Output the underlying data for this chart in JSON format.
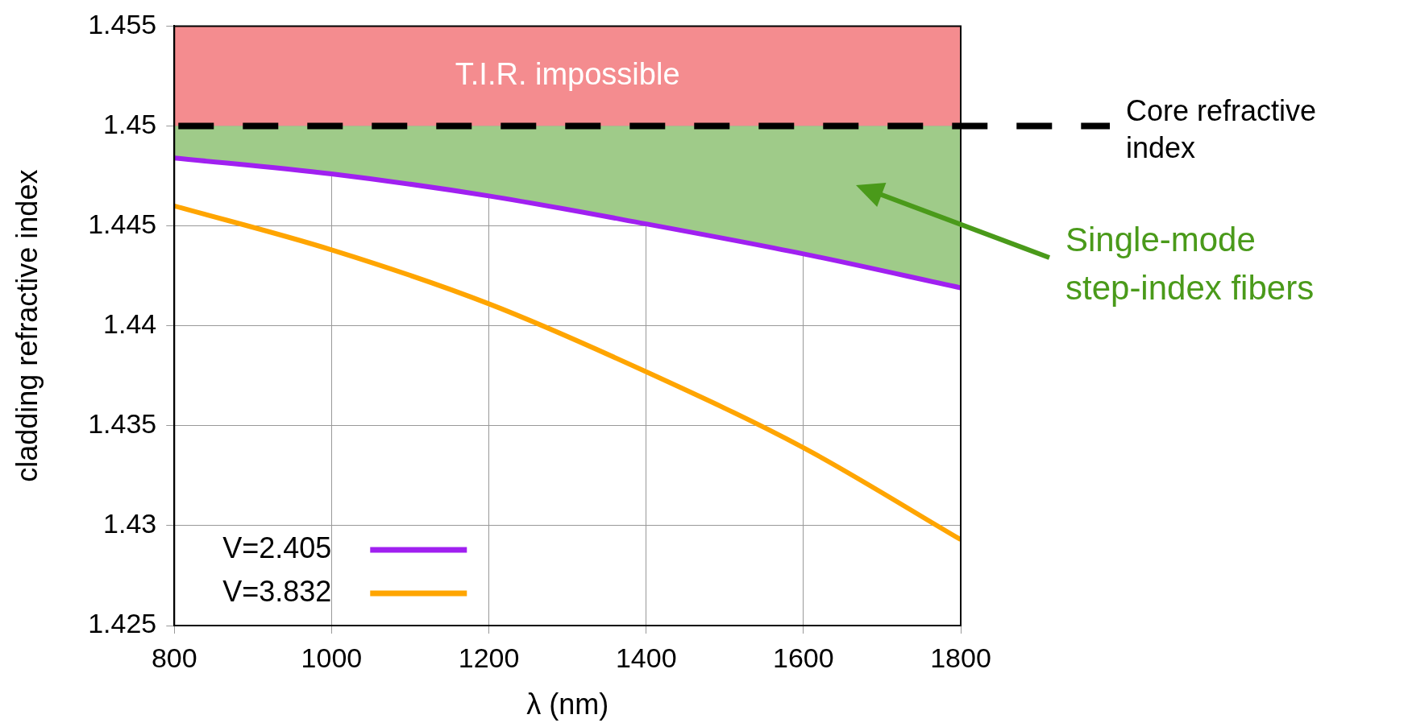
{
  "chart_data": {
    "type": "line",
    "xlabel": "λ (nm)",
    "ylabel": "cladding refractive index",
    "x": [
      800,
      1000,
      1200,
      1400,
      1600,
      1800
    ],
    "series": [
      {
        "type": "area",
        "color": "#9fcb89",
        "values": [
          1.45,
          1.45,
          1.45,
          1.45,
          1.45,
          1.45
        ]
      },
      {
        "name": "V=2.405",
        "color": "#a020f0",
        "values": [
          1.4484,
          1.4476,
          1.4465,
          1.4451,
          1.4436,
          1.4419
        ]
      },
      {
        "name": "V=3.832",
        "color": "#ffa500",
        "values": [
          1.446,
          1.4438,
          1.4411,
          1.4377,
          1.4339,
          1.4293
        ]
      }
    ],
    "xlim": [
      800,
      1800
    ],
    "xticks": [
      800,
      1000,
      1200,
      1400,
      1600,
      1800
    ],
    "ylim": [
      1.425,
      1.455
    ],
    "yticks": [
      1.425,
      1.43,
      1.435,
      1.44,
      1.445,
      1.45,
      1.455
    ],
    "grid": true,
    "legend": "bottom left",
    "marker": "none",
    "line_style": "solid",
    "bands": [
      {
        "axis": "y",
        "from": 1.45,
        "to": 1.455,
        "label": "T.I.R. impossible",
        "color": "#f48c8f"
      }
    ],
    "ref_lines": [
      {
        "axis": "y",
        "value": 1.45,
        "label": "Core refractive index",
        "color": "#000000",
        "line_style": "dashed"
      }
    ],
    "annotations": [
      "Single-mode step-index fibers"
    ]
  }
}
